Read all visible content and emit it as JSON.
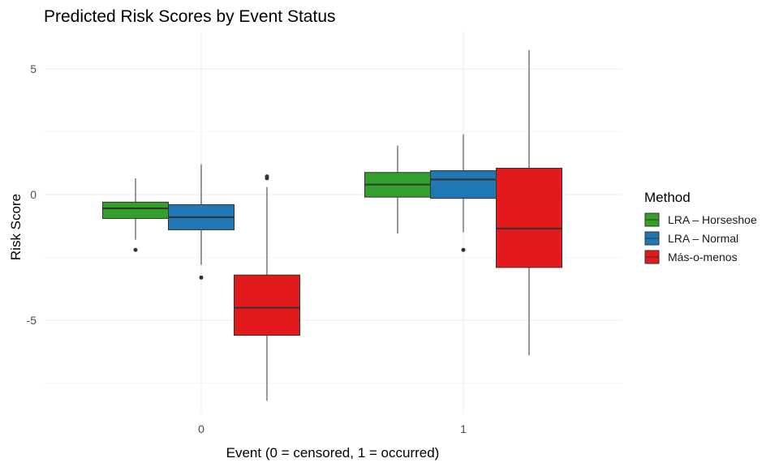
{
  "chart_data": {
    "type": "boxplot",
    "title": "Predicted Risk Scores by Event Status",
    "xlabel": "Event (0 = censored, 1 = occurred)",
    "ylabel": "Risk Score",
    "categories": [
      "0",
      "1"
    ],
    "yticks": [
      -5,
      0,
      5
    ],
    "ylim": [
      -8.6,
      6.2
    ],
    "grid": true,
    "legend": {
      "title": "Method",
      "position": "right"
    },
    "series": [
      {
        "name": "LRA – Horseshoe",
        "color": "#33a02c",
        "boxes": [
          {
            "category": "0",
            "min": -1.8,
            "q1": -0.95,
            "median": -0.55,
            "q3": -0.3,
            "max": 0.65,
            "outliers": [
              -2.2
            ]
          },
          {
            "category": "1",
            "min": -1.55,
            "q1": -0.1,
            "median": 0.4,
            "q3": 0.88,
            "max": 1.95,
            "outliers": []
          }
        ]
      },
      {
        "name": "LRA – Normal",
        "color": "#1f78b4",
        "boxes": [
          {
            "category": "0",
            "min": -2.8,
            "q1": -1.4,
            "median": -0.9,
            "q3": -0.4,
            "max": 1.2,
            "outliers": [
              -3.3
            ]
          },
          {
            "category": "1",
            "min": -1.5,
            "q1": -0.15,
            "median": 0.6,
            "q3": 0.95,
            "max": 2.4,
            "outliers": [
              -2.2
            ]
          }
        ]
      },
      {
        "name": "Más-o-menos",
        "color": "#e31a1c",
        "boxes": [
          {
            "category": "0",
            "min": -8.2,
            "q1": -5.6,
            "median": -4.5,
            "q3": -3.2,
            "max": 0.3,
            "outliers": [
              0.65,
              0.72
            ]
          },
          {
            "category": "1",
            "min": -6.4,
            "q1": -2.9,
            "median": -1.35,
            "q3": 1.05,
            "max": 5.75,
            "outliers": []
          }
        ]
      }
    ]
  }
}
